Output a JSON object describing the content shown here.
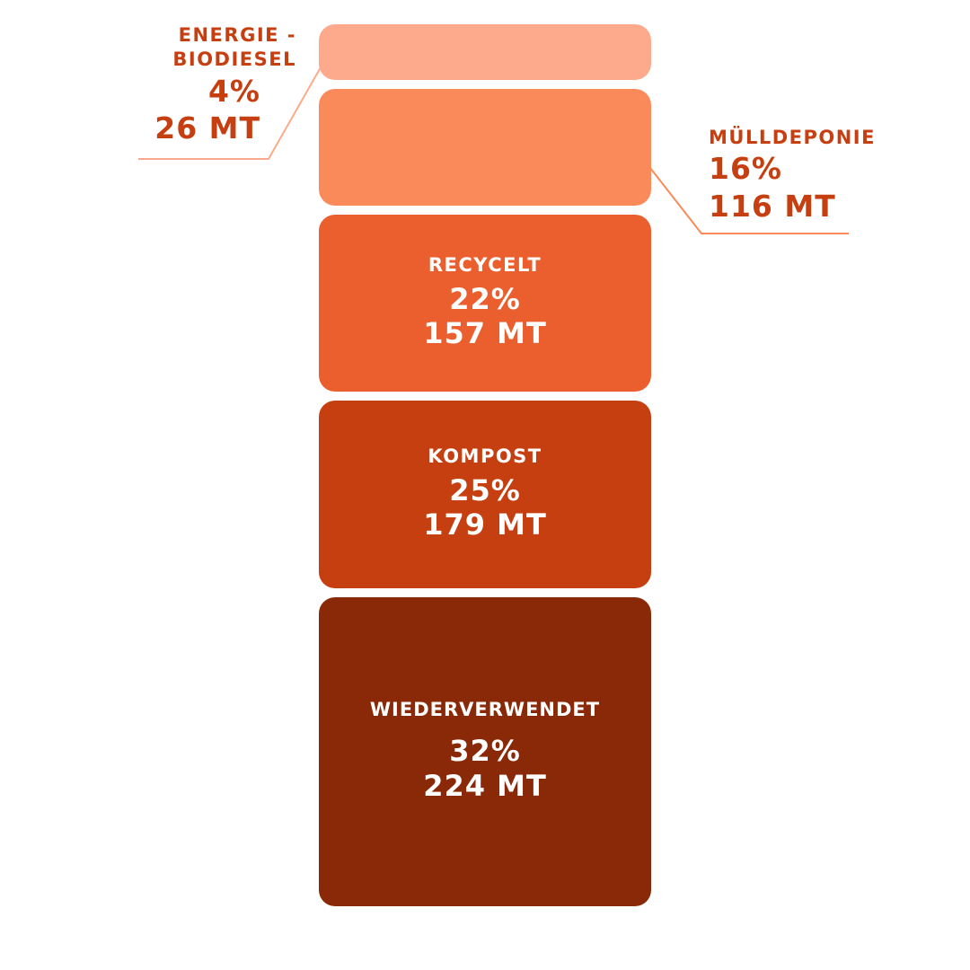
{
  "chart_data": {
    "type": "bar",
    "orientation": "stacked-blocks",
    "categories": [
      "Energie - Biodiesel",
      "Mülldeponie",
      "Recycelt",
      "Kompost",
      "Wiederverwendet"
    ],
    "series": [
      {
        "values_percent": [
          4,
          16,
          22,
          25,
          32
        ],
        "values_mt": [
          26,
          116,
          157,
          179,
          224
        ]
      }
    ],
    "labels": [
      {
        "name": "ENERGIE -",
        "name2": "BIODIESEL",
        "pct": "4%",
        "mt": "26 MT",
        "color": "#FDAA8C"
      },
      {
        "name": "MÜLLDEPONIE",
        "pct": "16%",
        "mt": "116 MT",
        "color": "#FB8A5A"
      },
      {
        "name": "RECYCELT",
        "pct": "22%",
        "mt": "157 MT",
        "color": "#EB5F2E"
      },
      {
        "name": "KOMPOST",
        "pct": "25%",
        "mt": "179 MT",
        "color": "#C63F10"
      },
      {
        "name": "WIEDERVERWENDET",
        "pct": "32%",
        "mt": "224 MT",
        "color": "#8A2907"
      }
    ],
    "label_color": "#C63F10"
  }
}
